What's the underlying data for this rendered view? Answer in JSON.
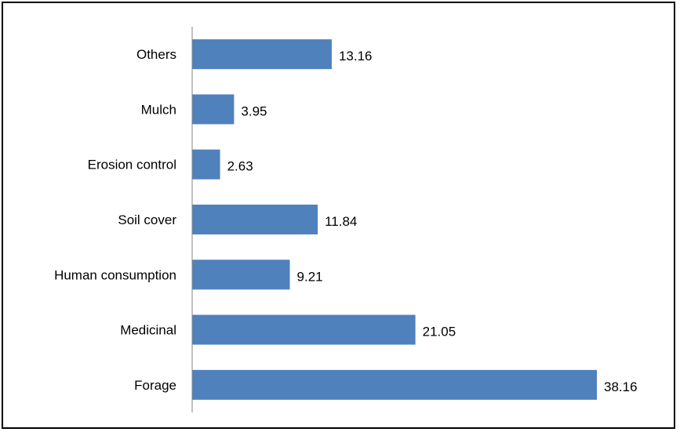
{
  "chart_data": {
    "type": "bar",
    "orientation": "horizontal",
    "categories": [
      "Others",
      "Mulch",
      "Erosion control",
      "Soil cover",
      "Human consumption",
      "Medicinal",
      "Forage"
    ],
    "values": [
      13.16,
      3.95,
      2.63,
      11.84,
      9.21,
      21.05,
      38.16
    ],
    "title": "",
    "xlabel": "",
    "ylabel": "",
    "xlim": [
      0,
      40
    ],
    "grid": false,
    "data_labels": true,
    "bar_color": "#4f81bd",
    "axis_color": "#868686",
    "text_color": "#000000"
  }
}
